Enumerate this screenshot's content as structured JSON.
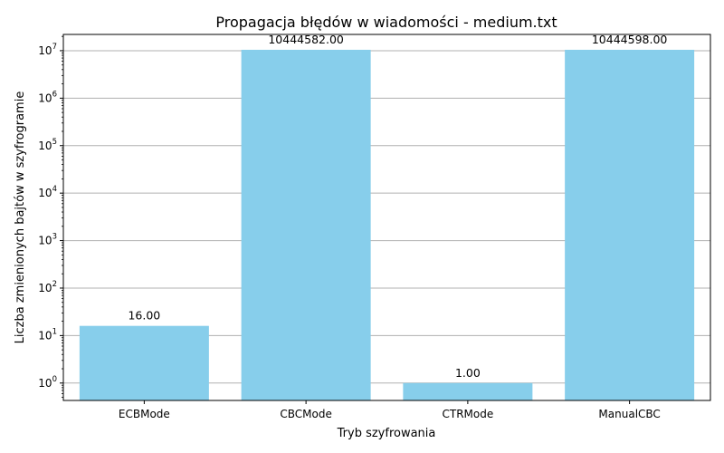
{
  "chart_data": {
    "type": "bar",
    "title": "Propagacja błędów w wiadomości - medium.txt",
    "xlabel": "Tryb szyfrowania",
    "ylabel": "Liczba zmienionych bajtów w szyfrogramie",
    "categories": [
      "ECBMode",
      "CBCMode",
      "CTRMode",
      "ManualCBC"
    ],
    "values": [
      16,
      10444582,
      1,
      10444598
    ],
    "value_labels": [
      "16.00",
      "10444582.00",
      "1.00",
      "10444598.00"
    ],
    "y_scale": "log",
    "ylim": [
      0.43,
      22000000
    ],
    "y_ticks": [
      1,
      10,
      100,
      1000,
      10000,
      100000,
      1000000,
      10000000
    ],
    "y_tick_labels": [
      {
        "base": "10",
        "exp": "0"
      },
      {
        "base": "10",
        "exp": "1"
      },
      {
        "base": "10",
        "exp": "2"
      },
      {
        "base": "10",
        "exp": "3"
      },
      {
        "base": "10",
        "exp": "4"
      },
      {
        "base": "10",
        "exp": "5"
      },
      {
        "base": "10",
        "exp": "6"
      },
      {
        "base": "10",
        "exp": "7"
      }
    ],
    "grid": "y-major",
    "bar_color": "#87ceeb",
    "grid_color": "#b0b0b0"
  }
}
